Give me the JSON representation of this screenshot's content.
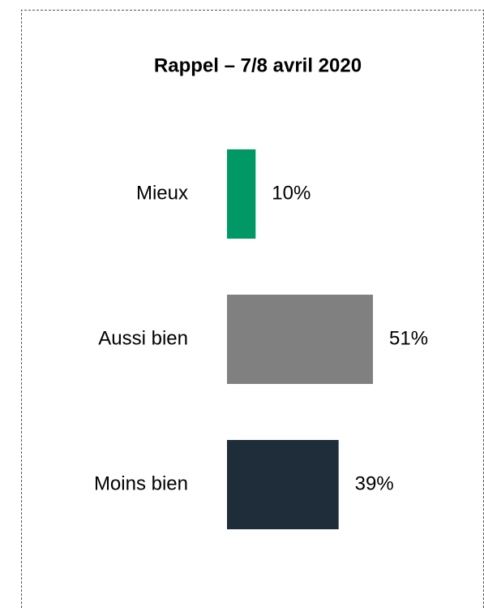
{
  "chart_data": {
    "type": "hbar",
    "title": "Rappel – 7/8 avril 2020",
    "categories": [
      "Mieux",
      "Aussi bien",
      "Moins bien"
    ],
    "values": [
      10,
      51,
      39
    ],
    "value_labels": [
      "10%",
      "51%",
      "39%"
    ],
    "colors": [
      "#009966",
      "#808080",
      "#1f2d3a"
    ]
  }
}
